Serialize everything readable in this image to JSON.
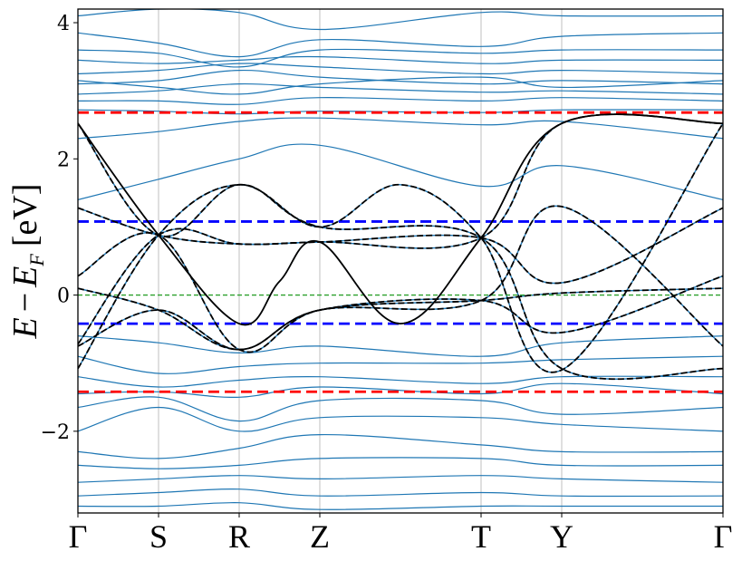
{
  "chart_data": {
    "type": "line",
    "title": "",
    "xlabel": "",
    "ylabel": {
      "E": "E",
      "minus": "−",
      "EF_base": "E",
      "EF_sub": "F",
      "unit": "[eV]"
    },
    "xlim": [
      0,
      8
    ],
    "ylim": [
      -3.2,
      4.2
    ],
    "yticks": [
      -2,
      0,
      2,
      4
    ],
    "ytick_labels": [
      "−2",
      "0",
      "2",
      "4"
    ],
    "kpoints": [
      {
        "label": "Γ",
        "x": 0
      },
      {
        "label": "S",
        "x": 1
      },
      {
        "label": "R",
        "x": 2
      },
      {
        "label": "Z",
        "x": 3
      },
      {
        "label": "T",
        "x": 5
      },
      {
        "label": "Y",
        "x": 6
      },
      {
        "label": "Γ",
        "x": 8
      }
    ],
    "vertical_grid": true,
    "colors": {
      "dft": "#1f77b4",
      "model": "#000000",
      "fermi": "#2ca02c",
      "outer_window": "#ff0000",
      "inner_window": "#0000ff",
      "grid": "#b0b0b0"
    },
    "horizontal_lines": [
      {
        "y": 2.68,
        "color": "#ff0000",
        "style": "dashed"
      },
      {
        "y": 1.08,
        "color": "#0000ff",
        "style": "dashed"
      },
      {
        "y": 0.0,
        "color": "#2ca02c",
        "style": "dashed"
      },
      {
        "y": -0.42,
        "color": "#0000ff",
        "style": "dashed"
      },
      {
        "y": -1.42,
        "color": "#ff0000",
        "style": "dashed"
      }
    ],
    "model_bands": [
      {
        "x": [
          0,
          1,
          2,
          3,
          5,
          6,
          8
        ],
        "y": [
          -1.08,
          0.88,
          1.62,
          1.0,
          0.84,
          -1.08,
          -1.08
        ]
      },
      {
        "x": [
          0,
          1,
          2,
          3,
          5,
          6,
          8
        ],
        "y": [
          -0.72,
          0.88,
          0.75,
          0.78,
          0.84,
          2.52,
          2.52
        ]
      },
      {
        "x": [
          0,
          1,
          2,
          2.5,
          3,
          4,
          5,
          6,
          8
        ],
        "y": [
          2.52,
          0.88,
          -0.42,
          0.2,
          0.78,
          -0.42,
          0.84,
          2.52,
          2.52
        ]
      },
      {
        "x": [
          0,
          1,
          2,
          3,
          5,
          6,
          8
        ],
        "y": [
          0.28,
          0.88,
          -0.8,
          -0.22,
          -0.08,
          -0.55,
          0.28
        ]
      },
      {
        "x": [
          0,
          1,
          2,
          3,
          5,
          6,
          8
        ],
        "y": [
          0.1,
          -0.22,
          -0.8,
          -0.22,
          -0.08,
          0.03,
          0.1
        ]
      },
      {
        "x": [
          0,
          1,
          2,
          3,
          5,
          6,
          8
        ],
        "y": [
          1.28,
          0.88,
          0.75,
          0.78,
          0.84,
          0.18,
          1.28
        ]
      },
      {
        "x": [
          0,
          1,
          2,
          3,
          5,
          6,
          8
        ],
        "y": [
          -0.75,
          -0.22,
          -0.8,
          -0.22,
          -0.08,
          1.3,
          -0.75
        ]
      },
      {
        "x": [
          0,
          1,
          2,
          3,
          4,
          5,
          6,
          8
        ],
        "y": [
          2.52,
          0.88,
          1.62,
          1.0,
          1.62,
          0.84,
          -1.1,
          2.52
        ]
      }
    ],
    "dft_bands": [
      {
        "x": [
          0,
          1,
          2,
          3,
          5,
          6,
          8
        ],
        "y": [
          2.72,
          2.7,
          2.66,
          2.7,
          2.68,
          2.72,
          2.72
        ]
      },
      {
        "x": [
          0,
          1,
          2,
          3,
          5,
          6,
          8
        ],
        "y": [
          2.95,
          3.0,
          3.1,
          3.05,
          2.98,
          3.0,
          2.95
        ]
      },
      {
        "x": [
          0,
          1,
          2,
          3,
          5,
          6,
          8
        ],
        "y": [
          3.1,
          3.15,
          3.3,
          3.2,
          3.1,
          3.15,
          3.1
        ]
      },
      {
        "x": [
          0,
          1,
          2,
          3,
          5,
          6,
          8
        ],
        "y": [
          3.25,
          3.3,
          3.4,
          3.35,
          3.25,
          3.3,
          3.25
        ]
      },
      {
        "x": [
          0,
          1,
          2,
          3,
          5,
          6,
          8
        ],
        "y": [
          3.45,
          3.4,
          3.45,
          3.5,
          3.4,
          3.45,
          3.45
        ]
      },
      {
        "x": [
          0,
          1,
          2,
          3,
          5,
          6,
          8
        ],
        "y": [
          3.6,
          3.55,
          3.35,
          3.6,
          3.55,
          3.6,
          3.6
        ]
      },
      {
        "x": [
          0,
          1,
          2,
          3,
          5,
          6,
          8
        ],
        "y": [
          3.15,
          3.05,
          2.95,
          3.1,
          3.2,
          3.05,
          3.15
        ]
      },
      {
        "x": [
          0,
          1,
          2,
          3,
          5,
          6,
          8
        ],
        "y": [
          3.85,
          3.7,
          3.5,
          3.75,
          3.65,
          3.8,
          3.85
        ]
      },
      {
        "x": [
          0,
          1,
          2,
          3,
          5,
          6,
          8
        ],
        "y": [
          4.1,
          4.2,
          4.15,
          3.9,
          4.15,
          4.1,
          4.1
        ]
      },
      {
        "x": [
          0,
          1,
          2,
          3,
          5,
          6,
          8
        ],
        "y": [
          2.85,
          2.85,
          2.8,
          2.9,
          2.85,
          2.9,
          2.85
        ]
      },
      {
        "x": [
          0,
          1,
          2,
          3,
          5,
          6,
          8
        ],
        "y": [
          -0.9,
          -1.15,
          -1.05,
          -1.0,
          -1.0,
          -0.95,
          -0.9
        ]
      },
      {
        "x": [
          0,
          1,
          2,
          3,
          5,
          6,
          8
        ],
        "y": [
          -1.2,
          -1.35,
          -1.25,
          -1.2,
          -1.3,
          -1.2,
          -1.2
        ]
      },
      {
        "x": [
          0,
          1,
          2,
          3,
          5,
          6,
          8
        ],
        "y": [
          -1.45,
          -1.42,
          -1.5,
          -1.35,
          -1.45,
          -1.3,
          -1.45
        ]
      },
      {
        "x": [
          0,
          1,
          2,
          3,
          5,
          6,
          8
        ],
        "y": [
          -1.65,
          -1.5,
          -1.85,
          -1.55,
          -1.55,
          -1.75,
          -1.65
        ]
      },
      {
        "x": [
          0,
          1,
          2,
          3,
          5,
          6,
          8
        ],
        "y": [
          -2.0,
          -1.65,
          -2.0,
          -1.8,
          -1.8,
          -1.9,
          -2.0
        ]
      },
      {
        "x": [
          0,
          1,
          2,
          3,
          5,
          6,
          8
        ],
        "y": [
          -2.3,
          -2.4,
          -2.25,
          -2.05,
          -2.2,
          -2.3,
          -2.3
        ]
      },
      {
        "x": [
          0,
          1,
          2,
          3,
          5,
          6,
          8
        ],
        "y": [
          -2.5,
          -2.55,
          -2.5,
          -2.4,
          -2.4,
          -2.5,
          -2.5
        ]
      },
      {
        "x": [
          0,
          1,
          2,
          3,
          5,
          6,
          8
        ],
        "y": [
          -2.75,
          -2.7,
          -2.65,
          -2.7,
          -2.65,
          -2.7,
          -2.75
        ]
      },
      {
        "x": [
          0,
          1,
          2,
          3,
          5,
          6,
          8
        ],
        "y": [
          -2.95,
          -2.9,
          -2.85,
          -2.95,
          -2.9,
          -2.95,
          -2.95
        ]
      },
      {
        "x": [
          0,
          1,
          2,
          3,
          5,
          6,
          8
        ],
        "y": [
          -3.1,
          -3.1,
          -3.05,
          -3.15,
          -3.1,
          -3.1,
          -3.1
        ]
      },
      {
        "x": [
          0,
          1,
          2,
          3,
          5,
          6,
          8
        ],
        "y": [
          2.3,
          2.4,
          2.55,
          2.6,
          2.5,
          2.55,
          2.3
        ]
      },
      {
        "x": [
          0,
          1,
          2,
          3,
          5,
          6,
          8
        ],
        "y": [
          1.4,
          1.7,
          2.0,
          2.2,
          1.6,
          1.9,
          1.4
        ]
      },
      {
        "x": [
          0,
          1,
          2,
          3,
          5,
          6,
          8
        ],
        "y": [
          -0.6,
          -0.7,
          -0.85,
          -0.75,
          -0.9,
          -0.7,
          -0.6
        ]
      }
    ]
  }
}
